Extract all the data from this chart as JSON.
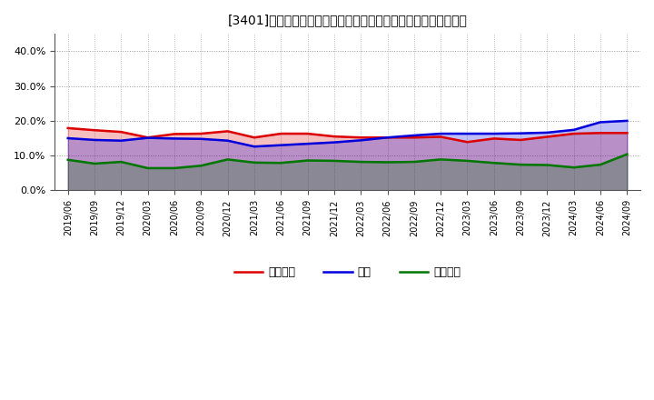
{
  "title": "[3401]　売上債権、在庫、買入債務の総資産に対する比率の推移",
  "x_labels": [
    "2019/06",
    "2019/09",
    "2019/12",
    "2020/03",
    "2020/06",
    "2020/09",
    "2020/12",
    "2021/03",
    "2021/06",
    "2021/09",
    "2021/12",
    "2022/03",
    "2022/06",
    "2022/09",
    "2022/12",
    "2023/03",
    "2023/06",
    "2023/09",
    "2023/12",
    "2024/03",
    "2024/06",
    "2024/09"
  ],
  "uriage": [
    0.179,
    0.173,
    0.168,
    0.152,
    0.162,
    0.163,
    0.17,
    0.152,
    0.163,
    0.163,
    0.155,
    0.152,
    0.152,
    0.152,
    0.154,
    0.139,
    0.149,
    0.145,
    0.154,
    0.163,
    0.165,
    0.165
  ],
  "zaiko": [
    0.15,
    0.145,
    0.143,
    0.151,
    0.149,
    0.148,
    0.143,
    0.126,
    0.13,
    0.134,
    0.138,
    0.144,
    0.152,
    0.158,
    0.163,
    0.163,
    0.163,
    0.164,
    0.166,
    0.174,
    0.196,
    0.2
  ],
  "kaiire": [
    0.088,
    0.077,
    0.082,
    0.064,
    0.064,
    0.071,
    0.089,
    0.08,
    0.079,
    0.086,
    0.085,
    0.082,
    0.081,
    0.082,
    0.089,
    0.085,
    0.079,
    0.074,
    0.073,
    0.066,
    0.074,
    0.104
  ],
  "color_uriage": "#dd0000",
  "color_zaiko": "#0000dd",
  "color_kaiire": "#007700",
  "label_uriage": "売上債権",
  "label_zaiko": "在庫",
  "label_kaiire": "買入債務",
  "ylim": [
    0.0,
    0.45
  ],
  "yticks": [
    0.0,
    0.1,
    0.2,
    0.3,
    0.4
  ],
  "fill_alpha": 0.25,
  "background_color": "#ffffff",
  "grid_color": "#999999",
  "spine_color": "#555555"
}
